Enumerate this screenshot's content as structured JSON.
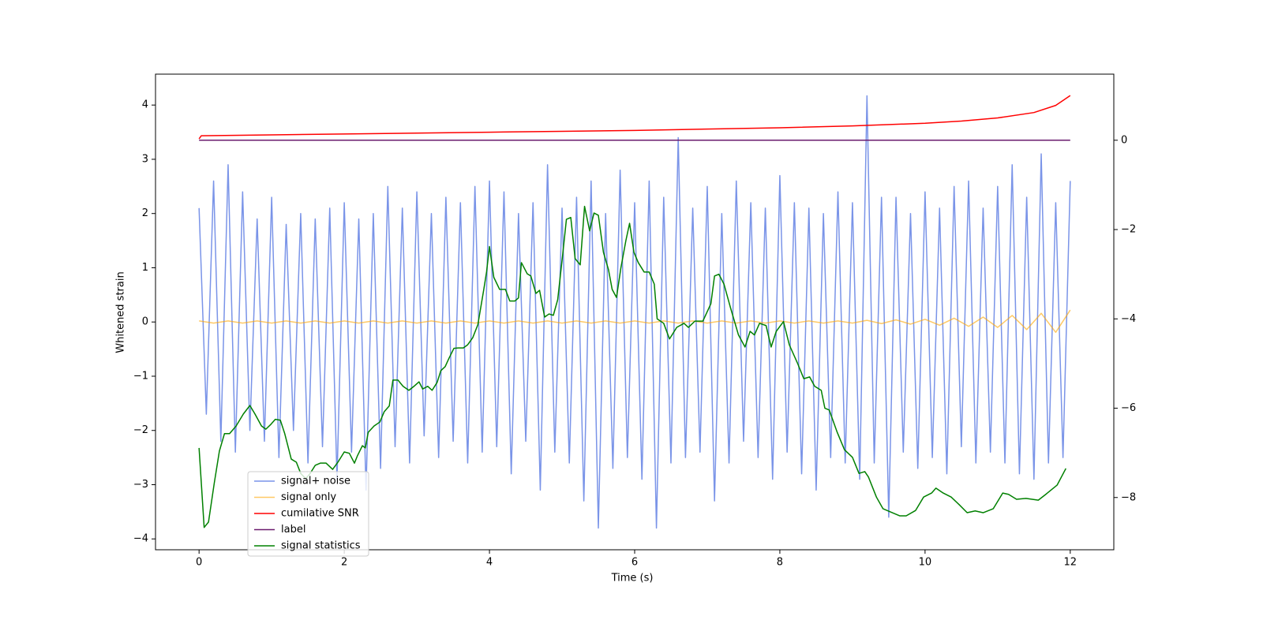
{
  "chart_data": {
    "type": "line",
    "xlabel": "Time (s)",
    "ylabel": "Whitened strain",
    "xlim": [
      -0.6,
      12.6
    ],
    "xticks": [
      0,
      2,
      4,
      6,
      8,
      10,
      12
    ],
    "ylim": [
      -4.2,
      4.57
    ],
    "yticks": [
      {
        "value": -4,
        "label": "−4"
      },
      {
        "value": -3,
        "label": "−3"
      },
      {
        "value": -2,
        "label": "−2"
      },
      {
        "value": -1,
        "label": "−1"
      },
      0,
      1,
      2,
      3,
      4
    ],
    "y2lim": [
      -9.17,
      1.48
    ],
    "y2ticks": [
      {
        "value": -8,
        "label": "−8"
      },
      {
        "value": -6,
        "label": "−6"
      },
      {
        "value": -4,
        "label": "−4"
      },
      {
        "value": -2,
        "label": "−2"
      },
      0
    ],
    "legend_loc": "lower left",
    "series": [
      {
        "name": "signal+ noise",
        "color": "#7a94e8",
        "x": [
          0,
          0.1,
          0.2,
          0.3,
          0.4,
          0.5,
          0.6,
          0.7,
          0.8,
          0.9,
          1,
          1.1,
          1.2,
          1.3,
          1.4,
          1.5,
          1.6,
          1.7,
          1.8,
          1.9,
          2,
          2.1,
          2.2,
          2.3,
          2.4,
          2.5,
          2.6,
          2.7,
          2.8,
          2.9,
          3,
          3.1,
          3.2,
          3.3,
          3.4,
          3.5,
          3.6,
          3.7,
          3.8,
          3.9,
          4,
          4.1,
          4.2,
          4.3,
          4.4,
          4.5,
          4.6,
          4.7,
          4.8,
          4.9,
          5,
          5.1,
          5.2,
          5.3,
          5.4,
          5.5,
          5.6,
          5.7,
          5.8,
          5.9,
          6,
          6.1,
          6.2,
          6.3,
          6.4,
          6.5,
          6.6,
          6.7,
          6.8,
          6.9,
          7,
          7.1,
          7.2,
          7.3,
          7.4,
          7.5,
          7.6,
          7.7,
          7.8,
          7.9,
          8,
          8.1,
          8.2,
          8.3,
          8.4,
          8.5,
          8.6,
          8.7,
          8.8,
          8.9,
          9,
          9.1,
          9.2,
          9.3,
          9.4,
          9.5,
          9.6,
          9.7,
          9.8,
          9.9,
          10,
          10.1,
          10.2,
          10.3,
          10.4,
          10.5,
          10.6,
          10.7,
          10.8,
          10.9,
          11,
          11.1,
          11.2,
          11.3,
          11.4,
          11.5,
          11.6,
          11.7,
          11.8,
          11.9,
          12
        ],
        "values": [
          2.1,
          -1.7,
          2.6,
          -2.2,
          2.9,
          -2.4,
          2.4,
          -2.0,
          1.9,
          -2.2,
          2.3,
          -2.5,
          1.8,
          -2.0,
          2.0,
          -2.6,
          1.9,
          -2.3,
          2.1,
          -2.9,
          2.2,
          -2.4,
          1.9,
          -3.1,
          2.0,
          -2.7,
          2.5,
          -2.3,
          2.1,
          -2.6,
          2.4,
          -2.1,
          2.0,
          -2.5,
          2.3,
          -2.2,
          2.2,
          -2.6,
          2.5,
          -2.4,
          2.6,
          -2.3,
          2.4,
          -2.8,
          2.0,
          -2.2,
          2.2,
          -3.1,
          2.9,
          -2.4,
          2.1,
          -2.6,
          2.3,
          -3.3,
          2.6,
          -3.8,
          2.0,
          -2.7,
          2.8,
          -2.5,
          2.2,
          -2.9,
          2.6,
          -3.8,
          2.3,
          -2.6,
          3.4,
          -2.5,
          2.1,
          -2.4,
          2.5,
          -3.3,
          2.0,
          -2.6,
          2.6,
          -2.2,
          2.2,
          -2.5,
          2.1,
          -2.9,
          2.7,
          -2.4,
          2.2,
          -2.8,
          2.1,
          -3.1,
          2.0,
          -2.5,
          2.4,
          -2.6,
          2.2,
          -2.9,
          4.17,
          -2.6,
          2.3,
          -3.6,
          2.3,
          -2.4,
          2.0,
          -2.7,
          2.4,
          -2.5,
          2.1,
          -2.8,
          2.5,
          -2.3,
          2.6,
          -2.6,
          2.1,
          -2.4,
          2.5,
          -2.6,
          2.9,
          -2.8,
          2.3,
          -2.9,
          3.1,
          -2.6,
          2.2,
          -2.5,
          2.6
        ]
      },
      {
        "name": "signal only",
        "color": "#ffa500",
        "x": [
          0,
          0.2,
          0.4,
          0.6,
          0.8,
          1,
          1.2,
          1.4,
          1.6,
          1.8,
          2,
          2.2,
          2.4,
          2.6,
          2.8,
          3,
          3.2,
          3.4,
          3.6,
          3.8,
          4,
          4.2,
          4.4,
          4.6,
          4.8,
          5,
          5.2,
          5.4,
          5.6,
          5.8,
          6,
          6.2,
          6.4,
          6.6,
          6.8,
          7,
          7.2,
          7.4,
          7.6,
          7.8,
          8,
          8.2,
          8.4,
          8.6,
          8.8,
          9,
          9.2,
          9.4,
          9.6,
          9.8,
          10,
          10.2,
          10.4,
          10.6,
          10.8,
          11,
          11.2,
          11.4,
          11.6,
          11.8,
          12
        ],
        "values": [
          0.02,
          -0.02,
          0.02,
          -0.02,
          0.02,
          -0.02,
          0.02,
          -0.02,
          0.02,
          -0.02,
          0.02,
          -0.02,
          0.02,
          -0.02,
          0.02,
          -0.02,
          0.02,
          -0.02,
          0.02,
          -0.02,
          0.02,
          -0.02,
          0.02,
          -0.02,
          0.02,
          -0.02,
          0.02,
          -0.02,
          0.02,
          -0.02,
          0.02,
          -0.02,
          0.02,
          -0.02,
          0.02,
          -0.02,
          0.02,
          -0.02,
          0.02,
          -0.02,
          0.02,
          -0.02,
          0.02,
          -0.02,
          0.02,
          -0.02,
          0.03,
          -0.03,
          0.04,
          -0.04,
          0.05,
          -0.06,
          0.07,
          -0.08,
          0.09,
          -0.1,
          0.12,
          -0.14,
          0.16,
          -0.19,
          0.22
        ]
      },
      {
        "name": "cumilative SNR",
        "color": "#ff0000",
        "axis": "y2",
        "x": [
          0,
          0.03,
          1,
          2,
          3,
          4,
          5,
          6,
          7,
          8,
          9,
          10,
          10.5,
          11,
          11.5,
          11.8,
          12
        ],
        "values": [
          0.03,
          0.1,
          0.12,
          0.14,
          0.16,
          0.18,
          0.2,
          0.22,
          0.25,
          0.28,
          0.32,
          0.38,
          0.43,
          0.5,
          0.62,
          0.78,
          1.0
        ]
      },
      {
        "name": "label",
        "color": "#6a1b6e",
        "axis": "y2",
        "x": [
          0,
          12
        ],
        "values": [
          0,
          0
        ]
      },
      {
        "name": "signal statistics",
        "color": "#008000",
        "axis": "y2",
        "x": [
          0,
          0.07,
          0.13,
          0.21,
          0.28,
          0.35,
          0.42,
          0.51,
          0.61,
          0.7,
          0.77,
          0.86,
          0.92,
          0.99,
          1.05,
          1.12,
          1.18,
          1.27,
          1.34,
          1.4,
          1.47,
          1.53,
          1.6,
          1.67,
          1.75,
          1.84,
          1.92,
          2.0,
          2.07,
          2.14,
          2.18,
          2.25,
          2.29,
          2.33,
          2.41,
          2.49,
          2.55,
          2.62,
          2.67,
          2.74,
          2.81,
          2.89,
          2.96,
          3.03,
          3.08,
          3.15,
          3.21,
          3.28,
          3.33,
          3.39,
          3.44,
          3.51,
          3.57,
          3.64,
          3.7,
          3.77,
          3.84,
          3.92,
          3.96,
          4.0,
          4.06,
          4.14,
          4.22,
          4.28,
          4.35,
          4.4,
          4.44,
          4.52,
          4.57,
          4.64,
          4.69,
          4.76,
          4.82,
          4.88,
          4.94,
          5.01,
          5.06,
          5.12,
          5.18,
          5.25,
          5.31,
          5.38,
          5.44,
          5.5,
          5.57,
          5.64,
          5.69,
          5.75,
          5.81,
          5.88,
          5.93,
          5.99,
          6.05,
          6.13,
          6.2,
          6.27,
          6.31,
          6.4,
          6.48,
          6.58,
          6.68,
          6.74,
          6.83,
          6.94,
          7.05,
          7.1,
          7.16,
          7.23,
          7.32,
          7.43,
          7.52,
          7.59,
          7.65,
          7.72,
          7.81,
          7.88,
          7.95,
          8.05,
          8.13,
          8.24,
          8.33,
          8.41,
          8.48,
          8.57,
          8.62,
          8.68,
          8.79,
          8.89,
          9.0,
          9.09,
          9.17,
          9.22,
          9.33,
          9.42,
          9.55,
          9.65,
          9.74,
          9.87,
          9.98,
          10.09,
          10.15,
          10.25,
          10.36,
          10.47,
          10.58,
          10.69,
          10.8,
          10.94,
          11.07,
          11.15,
          11.26,
          11.39,
          11.56,
          11.67,
          11.82,
          11.94
        ],
        "values": [
          -6.89,
          -8.67,
          -8.55,
          -7.67,
          -6.96,
          -6.57,
          -6.57,
          -6.4,
          -6.13,
          -5.94,
          -6.13,
          -6.4,
          -6.47,
          -6.36,
          -6.25,
          -6.27,
          -6.57,
          -7.14,
          -7.21,
          -7.46,
          -7.58,
          -7.46,
          -7.28,
          -7.23,
          -7.23,
          -7.37,
          -7.19,
          -6.98,
          -7.01,
          -7.23,
          -7.07,
          -6.84,
          -6.89,
          -6.54,
          -6.4,
          -6.31,
          -6.08,
          -5.95,
          -5.37,
          -5.37,
          -5.51,
          -5.6,
          -5.51,
          -5.41,
          -5.57,
          -5.51,
          -5.6,
          -5.42,
          -5.16,
          -5.07,
          -4.89,
          -4.66,
          -4.65,
          -4.65,
          -4.58,
          -4.42,
          -4.13,
          -3.36,
          -2.95,
          -2.38,
          -3.07,
          -3.34,
          -3.34,
          -3.6,
          -3.6,
          -3.53,
          -2.74,
          -2.99,
          -3.04,
          -3.43,
          -3.36,
          -3.96,
          -3.89,
          -3.92,
          -3.57,
          -2.54,
          -1.77,
          -1.73,
          -2.65,
          -2.79,
          -1.48,
          -2.03,
          -1.63,
          -1.68,
          -2.51,
          -2.9,
          -3.34,
          -3.52,
          -2.86,
          -2.24,
          -1.86,
          -2.51,
          -2.74,
          -2.95,
          -2.95,
          -3.22,
          -4.0,
          -4.1,
          -4.45,
          -4.19,
          -4.1,
          -4.19,
          -4.05,
          -4.05,
          -3.66,
          -3.04,
          -3.0,
          -3.22,
          -3.75,
          -4.36,
          -4.63,
          -4.28,
          -4.36,
          -4.1,
          -4.15,
          -4.63,
          -4.28,
          -4.06,
          -4.58,
          -4.98,
          -5.34,
          -5.3,
          -5.51,
          -5.6,
          -6.0,
          -6.04,
          -6.54,
          -6.93,
          -7.1,
          -7.46,
          -7.42,
          -7.54,
          -7.99,
          -8.25,
          -8.34,
          -8.41,
          -8.41,
          -8.29,
          -7.99,
          -7.9,
          -7.79,
          -7.9,
          -7.99,
          -8.16,
          -8.34,
          -8.3,
          -8.34,
          -8.25,
          -7.9,
          -7.93,
          -8.04,
          -8.02,
          -8.06,
          -7.92,
          -7.72,
          -7.35
        ]
      }
    ]
  }
}
